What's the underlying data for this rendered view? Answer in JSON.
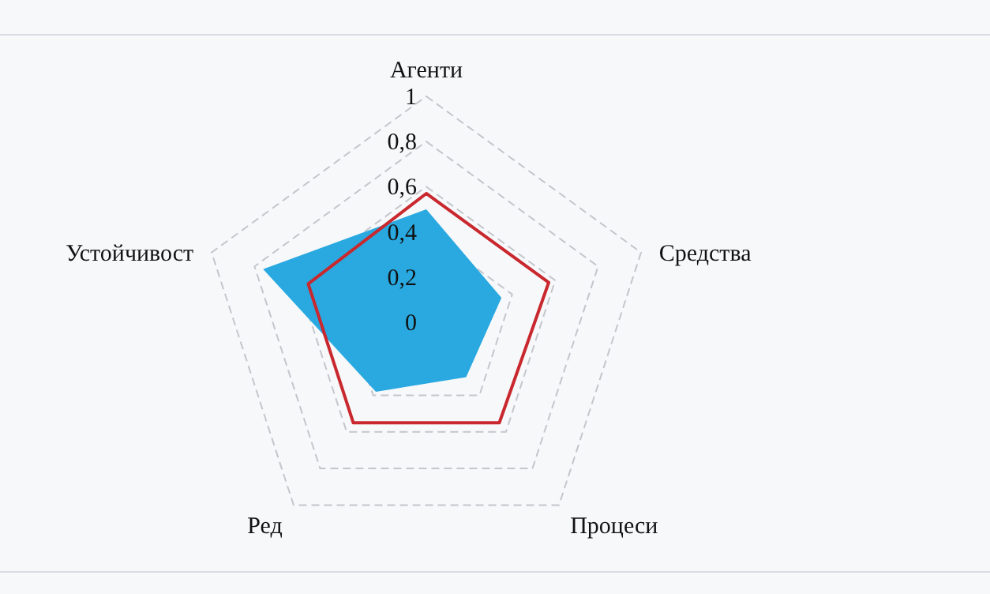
{
  "chart_data": {
    "type": "radar",
    "categories": [
      "Агенти",
      "Средства",
      "Процеси",
      "Ред",
      "Устойчивост"
    ],
    "series": [
      {
        "type": "area",
        "color": "#29a9e0",
        "values": [
          0.5,
          0.35,
          0.3,
          0.38,
          0.76
        ]
      },
      {
        "color": "#c8282e",
        "values": [
          0.57,
          0.57,
          0.55,
          0.55,
          0.55
        ]
      }
    ],
    "ylim": [
      0,
      1
    ],
    "yticks": [
      0,
      {
        "value": 0.2,
        "label": "0,2"
      },
      {
        "value": 0.4,
        "label": "0,4"
      },
      {
        "value": 0.6,
        "label": "0,6"
      },
      {
        "value": 0.8,
        "label": "0,8"
      },
      1
    ],
    "grid": true
  }
}
